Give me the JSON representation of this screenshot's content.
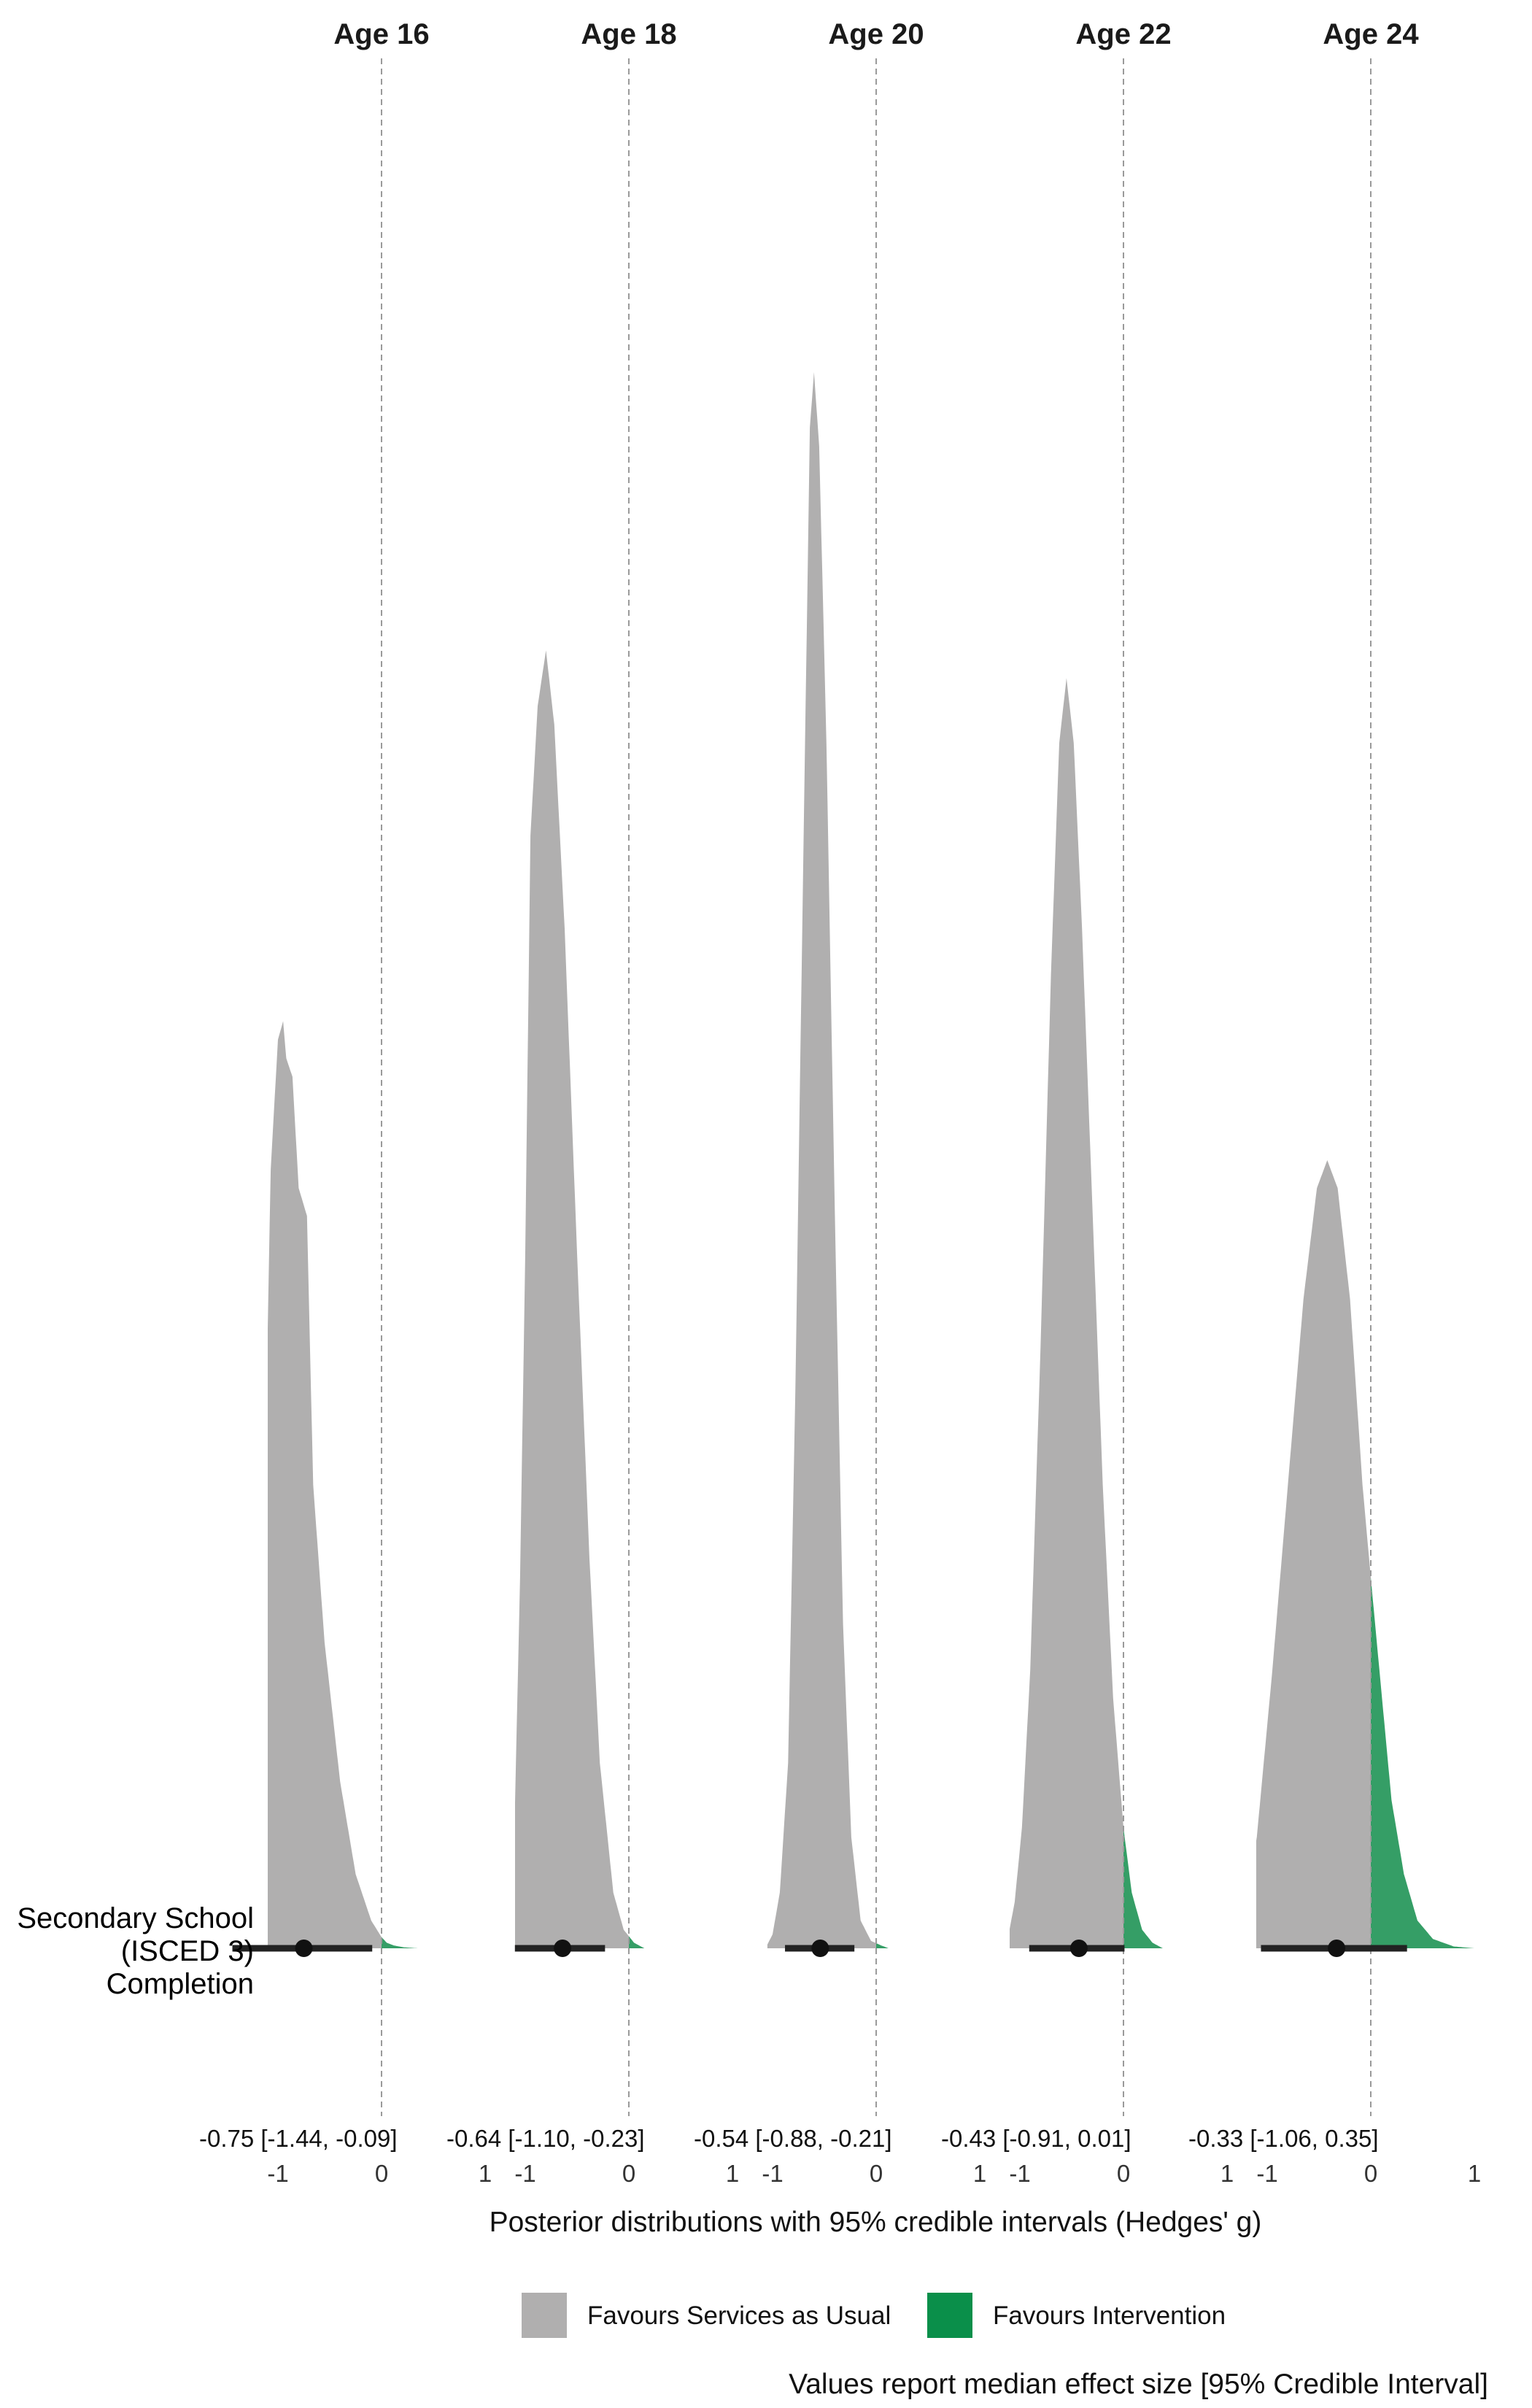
{
  "chart_data": {
    "type": "area",
    "title": "",
    "row_label": "Secondary School\n(ISCED 3)\nCompletion",
    "xlabel": "Posterior distributions with 95% credible intervals (Hedges' g)",
    "xlim": [
      -1,
      1
    ],
    "x_ticks": [
      -1,
      0,
      1
    ],
    "reference_line": 0,
    "legend": {
      "position": "bottom",
      "entries": [
        {
          "label": "Favours Services as Usual",
          "color": "#b0afaf"
        },
        {
          "label": "Favours Intervention",
          "color": "#0a8f4a"
        }
      ]
    },
    "caption": "Values report median effect size [95% Credible Interval]",
    "facets": [
      {
        "title": "Age 16",
        "summary": "-0.75 [-1.44, -0.09]",
        "median": -0.75,
        "ci": [
          -1.44,
          -0.09
        ],
        "max_density": 1.0,
        "density": [
          [
            -1.1,
            0.66
          ],
          [
            -1.07,
            0.84
          ],
          [
            -1.0,
            0.98
          ],
          [
            -0.95,
            1.0
          ],
          [
            -0.92,
            0.96
          ],
          [
            -0.86,
            0.94
          ],
          [
            -0.8,
            0.82
          ],
          [
            -0.72,
            0.79
          ],
          [
            -0.66,
            0.5
          ],
          [
            -0.55,
            0.33
          ],
          [
            -0.4,
            0.18
          ],
          [
            -0.25,
            0.08
          ],
          [
            -0.1,
            0.03
          ],
          [
            0.0,
            0.012
          ],
          [
            0.05,
            0.006
          ],
          [
            0.12,
            0.003
          ],
          [
            0.22,
            0.001
          ],
          [
            0.35,
            0.0
          ]
        ]
      },
      {
        "title": "Age 18",
        "summary": "-0.64 [-1.10, -0.23]",
        "median": -0.64,
        "ci": [
          -1.1,
          -0.23
        ],
        "max_density": 1.4,
        "density": [
          [
            -1.15,
            0.02
          ],
          [
            -1.12,
            0.06
          ],
          [
            -1.1,
            0.15
          ],
          [
            -1.05,
            0.4
          ],
          [
            -1.0,
            0.75
          ],
          [
            -0.95,
            1.2
          ],
          [
            -0.88,
            1.34
          ],
          [
            -0.8,
            1.4
          ],
          [
            -0.72,
            1.32
          ],
          [
            -0.62,
            1.1
          ],
          [
            -0.5,
            0.75
          ],
          [
            -0.38,
            0.42
          ],
          [
            -0.28,
            0.2
          ],
          [
            -0.15,
            0.06
          ],
          [
            -0.05,
            0.02
          ],
          [
            0.05,
            0.006
          ],
          [
            0.15,
            0.0
          ]
        ]
      },
      {
        "title": "Age 20",
        "summary": "-0.54 [-0.88, -0.21]",
        "median": -0.54,
        "ci": [
          -0.88,
          -0.21
        ],
        "max_density": 1.7,
        "density": [
          [
            -1.05,
            0.004
          ],
          [
            -1.0,
            0.015
          ],
          [
            -0.93,
            0.06
          ],
          [
            -0.85,
            0.2
          ],
          [
            -0.78,
            0.6
          ],
          [
            -0.7,
            1.2
          ],
          [
            -0.64,
            1.64
          ],
          [
            -0.6,
            1.7
          ],
          [
            -0.55,
            1.62
          ],
          [
            -0.48,
            1.3
          ],
          [
            -0.4,
            0.8
          ],
          [
            -0.32,
            0.35
          ],
          [
            -0.24,
            0.12
          ],
          [
            -0.15,
            0.03
          ],
          [
            -0.05,
            0.008
          ],
          [
            0.05,
            0.003
          ],
          [
            0.12,
            0.0
          ]
        ]
      },
      {
        "title": "Age 22",
        "summary": "-0.43 [-0.91, 0.01]",
        "median": -0.43,
        "ci": [
          -0.91,
          0.01
        ],
        "max_density": 1.37,
        "density": [
          [
            -1.1,
            0.02
          ],
          [
            -1.05,
            0.05
          ],
          [
            -0.98,
            0.13
          ],
          [
            -0.9,
            0.3
          ],
          [
            -0.8,
            0.65
          ],
          [
            -0.7,
            1.05
          ],
          [
            -0.62,
            1.3
          ],
          [
            -0.55,
            1.37
          ],
          [
            -0.48,
            1.3
          ],
          [
            -0.4,
            1.1
          ],
          [
            -0.3,
            0.8
          ],
          [
            -0.2,
            0.5
          ],
          [
            -0.1,
            0.27
          ],
          [
            0.0,
            0.13
          ],
          [
            0.08,
            0.06
          ],
          [
            0.18,
            0.02
          ],
          [
            0.28,
            0.006
          ],
          [
            0.38,
            0.0
          ]
        ]
      },
      {
        "title": "Age 24",
        "summary": "-0.33 [-1.06, 0.35]",
        "median": -0.33,
        "ci": [
          -1.06,
          0.35
        ],
        "max_density": 0.85,
        "density": [
          [
            -1.2,
            0.05
          ],
          [
            -1.1,
            0.12
          ],
          [
            -0.95,
            0.3
          ],
          [
            -0.8,
            0.5
          ],
          [
            -0.65,
            0.7
          ],
          [
            -0.52,
            0.82
          ],
          [
            -0.42,
            0.85
          ],
          [
            -0.32,
            0.82
          ],
          [
            -0.2,
            0.7
          ],
          [
            -0.08,
            0.5
          ],
          [
            0.0,
            0.4
          ],
          [
            0.1,
            0.28
          ],
          [
            0.2,
            0.16
          ],
          [
            0.32,
            0.08
          ],
          [
            0.45,
            0.03
          ],
          [
            0.6,
            0.01
          ],
          [
            0.8,
            0.002
          ],
          [
            1.0,
            0.0
          ]
        ]
      }
    ]
  }
}
